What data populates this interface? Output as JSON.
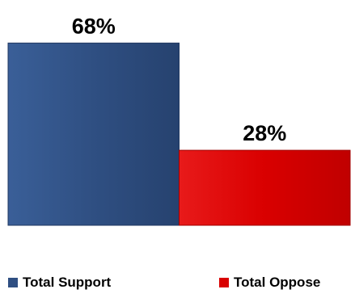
{
  "chart_data": {
    "type": "bar",
    "categories": [
      "Total Support",
      "Total Oppose"
    ],
    "values": [
      68,
      28
    ],
    "data_labels": [
      "68%",
      "28%"
    ],
    "colors": [
      "#2f4f82",
      "#d90000"
    ],
    "ylim": [
      0,
      72
    ],
    "legend_position": "bottom",
    "grid": false
  },
  "legend": {
    "items": [
      {
        "label": "Total Support",
        "color": "#2f4f82"
      },
      {
        "label": "Total Oppose",
        "color": "#d90000"
      }
    ]
  }
}
